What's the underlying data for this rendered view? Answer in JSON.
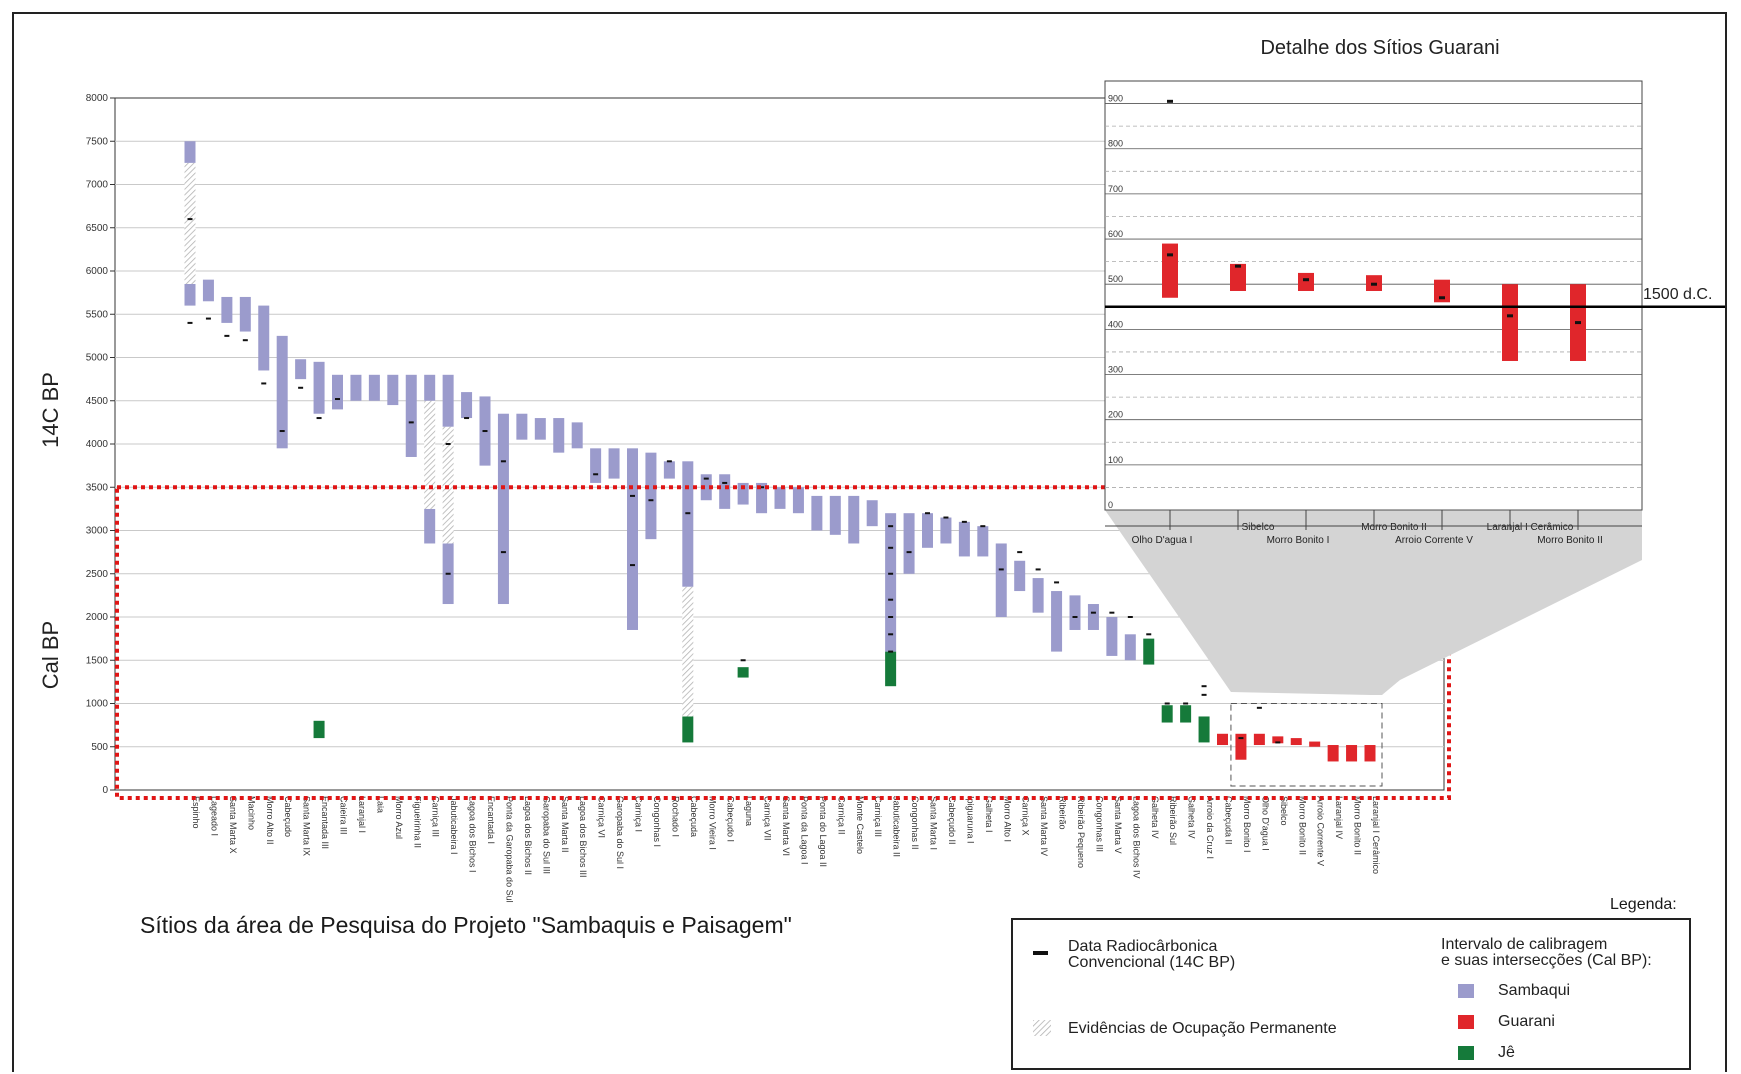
{
  "colors": {
    "sambaqui": "#9b9bcc",
    "guarani": "#e0262b",
    "je": "#157a3a",
    "highlight": "#e01515"
  },
  "chart_data": [
    {
      "type": "range-bar",
      "title": "Sítios da área de Pesquisa do Projeto \"Sambaquis e Paisagem\"",
      "ylabel_upper": "14C BP",
      "ylabel_lower": "Cal BP",
      "ylim": [
        0,
        8000
      ],
      "yticks": [
        0,
        500,
        1000,
        1500,
        2000,
        2500,
        3000,
        3500,
        4000,
        4500,
        5000,
        5500,
        6000,
        6500,
        7000,
        7500,
        8000
      ],
      "grid": true,
      "highlight_box": {
        "y_range": [
          0,
          3500
        ]
      },
      "sites": [
        {
          "name": "Espinho",
          "ranges": [
            [
              5600,
              5850,
              "sambaqui"
            ],
            [
              5850,
              7250,
              "hatch"
            ],
            [
              7250,
              7500,
              "sambaqui"
            ]
          ],
          "dates": [
            5400,
            6600
          ]
        },
        {
          "name": "Lageado I",
          "ranges": [
            [
              5650,
              5900,
              "sambaqui"
            ]
          ],
          "dates": [
            5450
          ]
        },
        {
          "name": "Santa Marta X",
          "ranges": [
            [
              5400,
              5700,
              "sambaqui"
            ]
          ],
          "dates": [
            5250
          ]
        },
        {
          "name": "Macinho",
          "ranges": [
            [
              5300,
              5700,
              "sambaqui"
            ]
          ],
          "dates": [
            5200
          ]
        },
        {
          "name": "Morro Alto II",
          "ranges": [
            [
              4850,
              5600,
              "sambaqui"
            ]
          ],
          "dates": [
            4700
          ]
        },
        {
          "name": "Cabeçudo",
          "ranges": [
            [
              3950,
              5250,
              "sambaqui"
            ]
          ],
          "dates": [
            4150
          ]
        },
        {
          "name": "Santa Marta IX",
          "ranges": [
            [
              4750,
              4980,
              "sambaqui"
            ]
          ],
          "dates": [
            4650
          ]
        },
        {
          "name": "Encantada III",
          "ranges": [
            [
              4350,
              4950,
              "sambaqui"
            ],
            [
              600,
              800,
              "je"
            ]
          ],
          "dates": [
            4300
          ]
        },
        {
          "name": "Caieira III",
          "ranges": [
            [
              4400,
              4800,
              "sambaqui"
            ]
          ],
          "dates": [
            4520
          ]
        },
        {
          "name": "Laranjal I",
          "ranges": [
            [
              4500,
              4800,
              "sambaqui"
            ]
          ],
          "dates": []
        },
        {
          "name": "Laia",
          "ranges": [
            [
              4500,
              4800,
              "sambaqui"
            ]
          ],
          "dates": []
        },
        {
          "name": "Morro Azul",
          "ranges": [
            [
              4450,
              4800,
              "sambaqui"
            ]
          ],
          "dates": []
        },
        {
          "name": "Figueirinha II",
          "ranges": [
            [
              3850,
              4800,
              "sambaqui"
            ]
          ],
          "dates": [
            4250
          ]
        },
        {
          "name": "Carniça III",
          "ranges": [
            [
              2850,
              3250,
              "sambaqui"
            ],
            [
              3250,
              4500,
              "hatch"
            ],
            [
              4500,
              4800,
              "sambaqui"
            ]
          ],
          "dates": []
        },
        {
          "name": "Jabuticabeira I",
          "ranges": [
            [
              2150,
              2850,
              "sambaqui"
            ],
            [
              2850,
              4200,
              "hatch"
            ],
            [
              4200,
              4800,
              "sambaqui"
            ]
          ],
          "dates": [
            2500,
            4000
          ]
        },
        {
          "name": "Lagoa dos Bichos I",
          "ranges": [
            [
              4300,
              4600,
              "sambaqui"
            ]
          ],
          "dates": [
            4300
          ]
        },
        {
          "name": "Encantada I",
          "ranges": [
            [
              3750,
              4550,
              "sambaqui"
            ]
          ],
          "dates": [
            4150
          ]
        },
        {
          "name": "Ponta da Garopaba do Sul",
          "ranges": [
            [
              2150,
              4350,
              "sambaqui"
            ]
          ],
          "dates": [
            2750,
            3800
          ]
        },
        {
          "name": "Lagoa dos Bichos II",
          "ranges": [
            [
              4050,
              4350,
              "sambaqui"
            ]
          ],
          "dates": []
        },
        {
          "name": "Garopaba do Sul III",
          "ranges": [
            [
              4050,
              4300,
              "sambaqui"
            ]
          ],
          "dates": []
        },
        {
          "name": "Santa Marta II",
          "ranges": [
            [
              3900,
              4300,
              "sambaqui"
            ]
          ],
          "dates": []
        },
        {
          "name": "Lagoa dos Bichos III",
          "ranges": [
            [
              3950,
              4250,
              "sambaqui"
            ]
          ],
          "dates": []
        },
        {
          "name": "Carniça VI",
          "ranges": [
            [
              3550,
              3950,
              "sambaqui"
            ]
          ],
          "dates": [
            3650
          ]
        },
        {
          "name": "Garopaba do Sul I",
          "ranges": [
            [
              3600,
              3950,
              "sambaqui"
            ]
          ],
          "dates": []
        },
        {
          "name": "Carniça I",
          "ranges": [
            [
              1850,
              3950,
              "sambaqui"
            ]
          ],
          "dates": [
            2600,
            3400
          ]
        },
        {
          "name": "Congonhas I",
          "ranges": [
            [
              2900,
              3900,
              "sambaqui"
            ]
          ],
          "dates": [
            3350
          ]
        },
        {
          "name": "Rochado I",
          "ranges": [
            [
              3600,
              3800,
              "sambaqui"
            ]
          ],
          "dates": [
            3800
          ]
        },
        {
          "name": "Cabeçuda",
          "ranges": [
            [
              550,
              850,
              "je"
            ],
            [
              850,
              2350,
              "hatch"
            ],
            [
              2350,
              3800,
              "sambaqui"
            ]
          ],
          "dates": [
            3200
          ]
        },
        {
          "name": "Morro Vieira I",
          "ranges": [
            [
              3350,
              3650,
              "sambaqui"
            ]
          ],
          "dates": [
            3600
          ]
        },
        {
          "name": "Cabeçudo I",
          "ranges": [
            [
              3250,
              3650,
              "sambaqui"
            ]
          ],
          "dates": [
            3550
          ]
        },
        {
          "name": "Laguna",
          "ranges": [
            [
              1300,
              1420,
              "je"
            ],
            [
              3300,
              3550,
              "sambaqui"
            ]
          ],
          "dates": [
            1500
          ]
        },
        {
          "name": "Carniça VII",
          "ranges": [
            [
              3200,
              3550,
              "sambaqui"
            ]
          ],
          "dates": [
            3500
          ]
        },
        {
          "name": "Santa Marta VI",
          "ranges": [
            [
              3250,
              3500,
              "sambaqui"
            ]
          ],
          "dates": []
        },
        {
          "name": "Ponta da Lagoa I",
          "ranges": [
            [
              3200,
              3500,
              "sambaqui"
            ]
          ],
          "dates": []
        },
        {
          "name": "Ponta do Lagoa II",
          "ranges": [
            [
              3000,
              3400,
              "sambaqui"
            ]
          ],
          "dates": []
        },
        {
          "name": "Carniça II",
          "ranges": [
            [
              2950,
              3400,
              "sambaqui"
            ]
          ],
          "dates": []
        },
        {
          "name": "Monte Castelo",
          "ranges": [
            [
              2850,
              3400,
              "sambaqui"
            ]
          ],
          "dates": []
        },
        {
          "name": "Carniça III",
          "ranges": [
            [
              3050,
              3350,
              "sambaqui"
            ]
          ],
          "dates": []
        },
        {
          "name": "Jabuticabeira II",
          "ranges": [
            [
              1200,
              1600,
              "je"
            ],
            [
              1600,
              3200,
              "sambaqui"
            ]
          ],
          "dates": [
            1600,
            1800,
            2000,
            2200,
            2500,
            2800,
            3050
          ]
        },
        {
          "name": "Congonhas II",
          "ranges": [
            [
              2500,
              3200,
              "sambaqui"
            ]
          ],
          "dates": [
            2750
          ]
        },
        {
          "name": "Santa Marta I",
          "ranges": [
            [
              2800,
              3200,
              "sambaqui"
            ]
          ],
          "dates": [
            3200
          ]
        },
        {
          "name": "Cabeçudo II",
          "ranges": [
            [
              2850,
              3150,
              "sambaqui"
            ]
          ],
          "dates": [
            3150
          ]
        },
        {
          "name": "Ipiguaruna I",
          "ranges": [
            [
              2700,
              3100,
              "sambaqui"
            ]
          ],
          "dates": [
            3100
          ]
        },
        {
          "name": "Galheta I",
          "ranges": [
            [
              2700,
              3050,
              "sambaqui"
            ]
          ],
          "dates": [
            3050
          ]
        },
        {
          "name": "Morro Alto I",
          "ranges": [
            [
              2000,
              2850,
              "sambaqui"
            ]
          ],
          "dates": [
            2550
          ]
        },
        {
          "name": "Carniça X",
          "ranges": [
            [
              2300,
              2650,
              "sambaqui"
            ]
          ],
          "dates": [
            2750
          ]
        },
        {
          "name": "Santa Marta IV",
          "ranges": [
            [
              2050,
              2450,
              "sambaqui"
            ]
          ],
          "dates": [
            2550
          ]
        },
        {
          "name": "Ribeirão",
          "ranges": [
            [
              1600,
              2300,
              "sambaqui"
            ]
          ],
          "dates": [
            2400
          ]
        },
        {
          "name": "Ribeirão Pequeno",
          "ranges": [
            [
              1850,
              2250,
              "sambaqui"
            ]
          ],
          "dates": [
            2000
          ]
        },
        {
          "name": "Congonhas III",
          "ranges": [
            [
              1850,
              2150,
              "sambaqui"
            ]
          ],
          "dates": [
            2050
          ]
        },
        {
          "name": "Santa Marta V",
          "ranges": [
            [
              1550,
              2000,
              "sambaqui"
            ]
          ],
          "dates": [
            2050
          ]
        },
        {
          "name": "Lagoa dos Bichos IV",
          "ranges": [
            [
              1500,
              1800,
              "sambaqui"
            ]
          ],
          "dates": [
            2000
          ]
        },
        {
          "name": "Galheta IV",
          "ranges": [
            [
              1450,
              1750,
              "je"
            ]
          ],
          "dates": [
            1800
          ]
        },
        {
          "name": "Ribeirão Sul",
          "ranges": [
            [
              780,
              980,
              "je"
            ]
          ],
          "dates": [
            1000
          ]
        },
        {
          "name": "Galheta IV",
          "ranges": [
            [
              780,
              980,
              "je"
            ]
          ],
          "dates": [
            1000
          ]
        },
        {
          "name": "Arroio da Cruz I",
          "ranges": [
            [
              550,
              850,
              "je"
            ]
          ],
          "dates": [
            1100,
            1200
          ]
        },
        {
          "name": "Cabeçuda II",
          "ranges": [
            [
              520,
              650,
              "guarani"
            ]
          ],
          "dates": []
        },
        {
          "name": "Morro Bonito I",
          "ranges": [
            [
              350,
              650,
              "guarani"
            ]
          ],
          "dates": [
            600
          ]
        },
        {
          "name": "Olho D'agua I",
          "ranges": [
            [
              520,
              650,
              "guarani"
            ]
          ],
          "dates": [
            950
          ]
        },
        {
          "name": "Sibelco",
          "ranges": [
            [
              540,
              620,
              "guarani"
            ]
          ],
          "dates": [
            550
          ]
        },
        {
          "name": "Morro Bonito II",
          "ranges": [
            [
              520,
              600,
              "guarani"
            ]
          ],
          "dates": []
        },
        {
          "name": "Arroio Corrente V",
          "ranges": [
            [
              500,
              560,
              "guarani"
            ]
          ],
          "dates": []
        },
        {
          "name": "Laranjal IV",
          "ranges": [
            [
              330,
              520,
              "guarani"
            ]
          ],
          "dates": []
        },
        {
          "name": "Morro Bonito II",
          "ranges": [
            [
              330,
              520,
              "guarani"
            ]
          ],
          "dates": []
        },
        {
          "name": "Laranjal I Cerâmico",
          "ranges": [
            [
              330,
              520,
              "guarani"
            ]
          ],
          "dates": []
        }
      ]
    },
    {
      "type": "range-bar",
      "title": "Detalhe dos Sítios Guarani",
      "ylim": [
        0,
        950
      ],
      "yticks": [
        0,
        100,
        200,
        300,
        400,
        500,
        600,
        700,
        800,
        900
      ],
      "reference_line": {
        "value": 450,
        "label": "1500 d.C."
      },
      "sites": [
        {
          "name": "Olho D'agua I",
          "range": [
            470,
            590
          ],
          "date": 565,
          "outlier_date": 905
        },
        {
          "name": "Sibelco",
          "range": [
            485,
            545
          ],
          "date": 540
        },
        {
          "name": "Morro Bonito I",
          "range": [
            485,
            525
          ],
          "date": 510
        },
        {
          "name": "Morro Bonito II",
          "range": [
            485,
            520
          ],
          "date": 500
        },
        {
          "name": "Arroio Corrente V",
          "range": [
            460,
            510
          ],
          "date": 470
        },
        {
          "name": "Laranjal I Cerâmico",
          "range": [
            330,
            500
          ],
          "date": 430
        },
        {
          "name": "Morro Bonito II",
          "range": [
            330,
            500
          ],
          "date": 415
        }
      ]
    }
  ],
  "legend": {
    "title": "Legenda:",
    "date_label_1": "Data Radiocârbonica",
    "date_label_2": "Convencional (14C BP)",
    "hatch_label": "Evidências de Ocupação Permanente",
    "interval_label_1": "Intervalo de calibragem",
    "interval_label_2": "e suas intersecções (Cal BP):",
    "items": [
      {
        "label": "Sambaqui",
        "color_key": "sambaqui"
      },
      {
        "label": "Guarani",
        "color_key": "guarani"
      },
      {
        "label": "Jê",
        "color_key": "je"
      }
    ]
  }
}
